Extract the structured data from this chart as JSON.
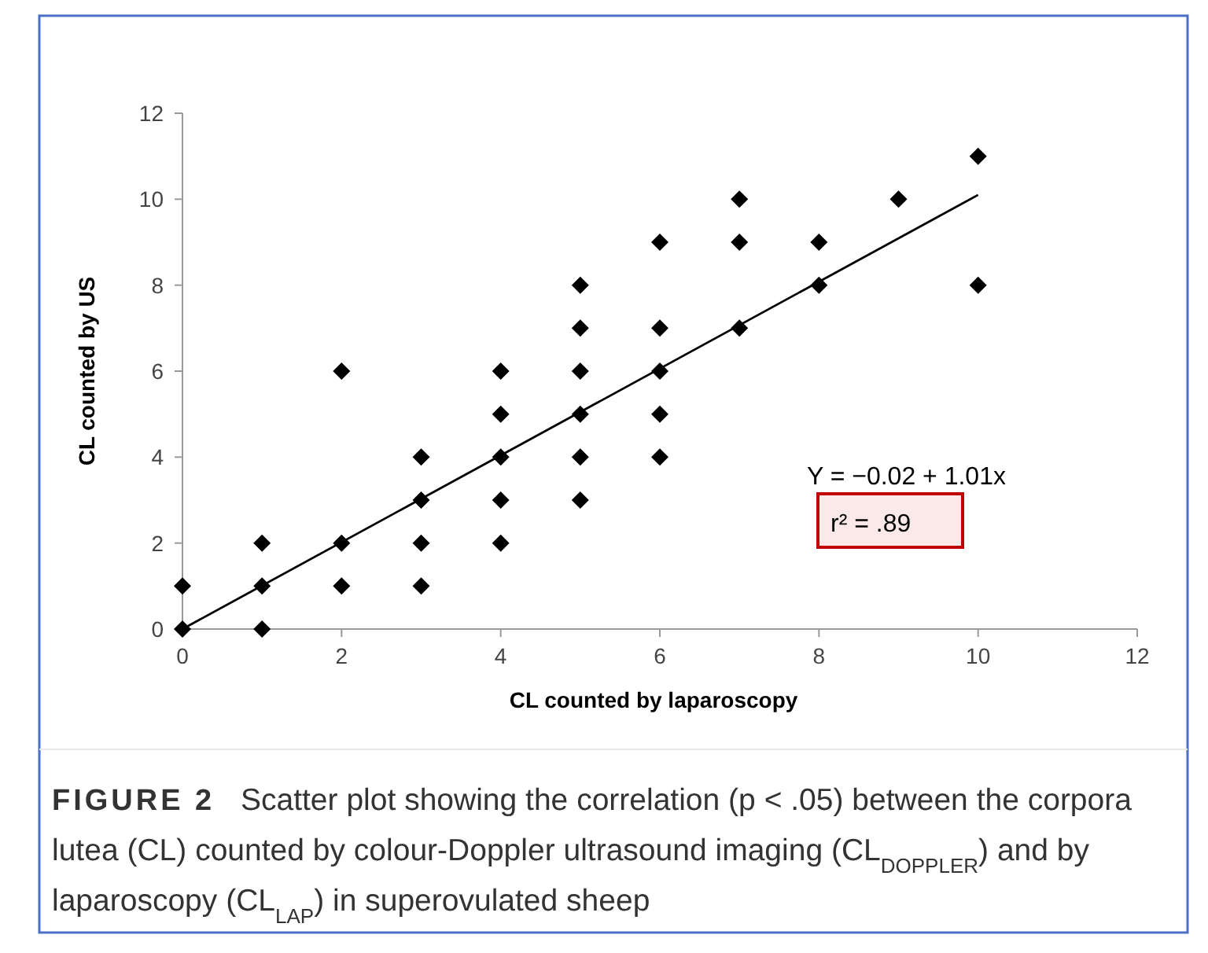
{
  "chart_data": {
    "type": "scatter",
    "xlabel": "CL counted by laparoscopy",
    "ylabel": "CL counted by US",
    "xlim": [
      0,
      12
    ],
    "ylim": [
      0,
      12
    ],
    "xticks": [
      0,
      2,
      4,
      6,
      8,
      10,
      12
    ],
    "yticks": [
      0,
      2,
      4,
      6,
      8,
      10,
      12
    ],
    "grid": false,
    "marker": "diamond",
    "series": [
      {
        "color": "#000000",
        "x": [
          0,
          0,
          1,
          1,
          1,
          2,
          2,
          2,
          3,
          3,
          3,
          3,
          4,
          4,
          4,
          4,
          4,
          5,
          5,
          5,
          5,
          5,
          5,
          6,
          6,
          6,
          6,
          6,
          7,
          7,
          7,
          8,
          8,
          9,
          10,
          10
        ],
        "values": [
          0,
          1,
          0,
          1,
          2,
          1,
          2,
          6,
          1,
          2,
          3,
          4,
          2,
          3,
          4,
          5,
          6,
          3,
          4,
          5,
          6,
          7,
          8,
          4,
          5,
          6,
          7,
          9,
          7,
          9,
          10,
          8,
          9,
          10,
          8,
          11
        ]
      },
      {
        "type": "line",
        "color": "#000000",
        "x": [
          0,
          10
        ],
        "values": [
          0,
          10.1
        ],
        "marker": "none",
        "line_style": "solid"
      }
    ],
    "annotations": [
      "Y = −0.02 + 1.01x",
      "r² = .89",
      "FIGURE 2",
      "Scatter plot showing the correlation (p < .05) between the corpora lutea (CL) counted by colour-Doppler ultrasound imaging (CL$_{DOPPLER}$) and by laparoscopy (CL$_{LAP}$) in superovulated sheep"
    ]
  }
}
